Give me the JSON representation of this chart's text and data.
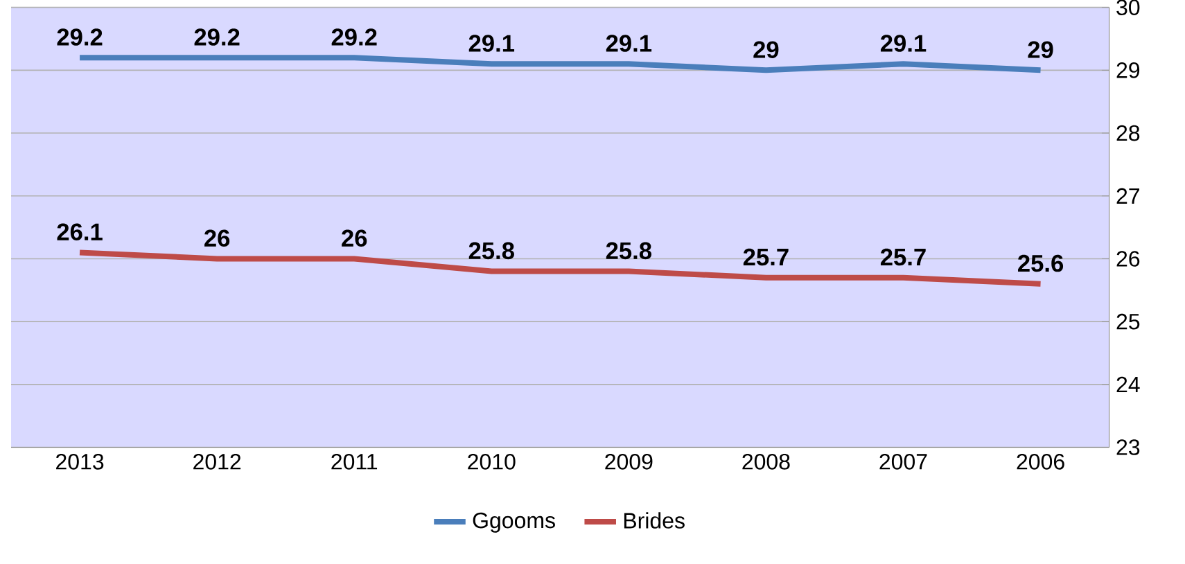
{
  "chart_data": {
    "type": "line",
    "categories": [
      "2013",
      "2012",
      "2011",
      "2010",
      "2009",
      "2008",
      "2007",
      "2006"
    ],
    "series": [
      {
        "name": "Ggooms",
        "color": "#4a7ebb",
        "values": [
          29.2,
          29.2,
          29.2,
          29.1,
          29.1,
          29,
          29.1,
          29
        ]
      },
      {
        "name": "Brides",
        "color": "#be4b48",
        "values": [
          26.1,
          26,
          26,
          25.8,
          25.8,
          25.7,
          25.7,
          25.6
        ]
      }
    ],
    "ylim": [
      23,
      30
    ],
    "yticks": [
      23,
      24,
      25,
      26,
      27,
      28,
      29,
      30
    ],
    "grid": "y",
    "legend": "bottom",
    "data_labels": true,
    "marker": "none",
    "line_style": "solid"
  }
}
